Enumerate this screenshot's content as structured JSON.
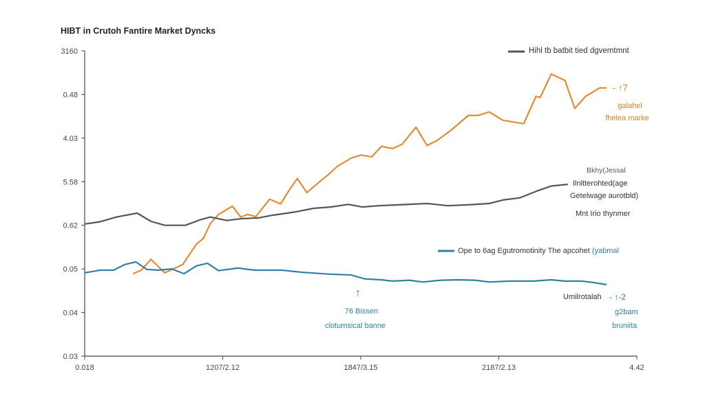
{
  "chart_data": {
    "type": "line",
    "title": "HIBT in Crutoh Fantire Market Dyncks",
    "xlabel": "",
    "ylabel": "",
    "xlim": [
      0,
      4
    ],
    "ylim": [
      0,
      7
    ],
    "grid": false,
    "x_ticks": [
      {
        "value": 0,
        "label": "0.018"
      },
      {
        "value": 1,
        "label": "1207/2.12"
      },
      {
        "value": 2,
        "label": "1847/3.15"
      },
      {
        "value": 3,
        "label": "2187/2.13"
      },
      {
        "value": 4,
        "label": "4.42"
      }
    ],
    "y_ticks": [
      {
        "value": 0,
        "label": "0.03"
      },
      {
        "value": 1,
        "label": "0.04"
      },
      {
        "value": 2,
        "label": "0.05"
      },
      {
        "value": 3,
        "label": "0.62"
      },
      {
        "value": 4,
        "label": "5.58"
      },
      {
        "value": 5,
        "label": "4.03"
      },
      {
        "value": 6,
        "label": "0.48"
      },
      {
        "value": 7,
        "label": "3160"
      }
    ],
    "series": [
      {
        "name": "orange",
        "color": "#e38a32",
        "x": [
          0.35,
          0.41,
          0.48,
          0.58,
          0.71,
          0.81,
          0.86,
          0.91,
          0.97,
          1.07,
          1.13,
          1.18,
          1.24,
          1.34,
          1.42,
          1.48,
          1.54,
          1.61,
          1.68,
          1.76,
          1.83,
          1.93,
          2.0,
          2.08,
          2.15,
          2.23,
          2.3,
          2.4,
          2.48,
          2.55,
          2.65,
          2.78,
          2.85,
          2.93,
          3.03,
          3.18,
          3.27,
          3.3,
          3.38,
          3.48,
          3.55,
          3.63,
          3.73,
          3.78
        ],
        "y": [
          1.89,
          1.97,
          2.22,
          1.91,
          2.1,
          2.57,
          2.7,
          3.04,
          3.25,
          3.44,
          3.19,
          3.25,
          3.2,
          3.6,
          3.49,
          3.8,
          4.07,
          3.75,
          3.94,
          4.15,
          4.35,
          4.54,
          4.61,
          4.57,
          4.81,
          4.76,
          4.86,
          5.25,
          4.83,
          4.94,
          5.17,
          5.52,
          5.52,
          5.6,
          5.41,
          5.33,
          5.96,
          5.93,
          6.47,
          6.32,
          5.68,
          5.96,
          6.15,
          6.15
        ]
      },
      {
        "name": "Hihl tb batbit tied dgvemtmnt",
        "color": "#555555",
        "x": [
          0,
          0.11,
          0.23,
          0.38,
          0.48,
          0.58,
          0.73,
          0.83,
          0.91,
          1.03,
          1.13,
          1.26,
          1.36,
          1.53,
          1.66,
          1.78,
          1.91,
          2.01,
          2.13,
          2.28,
          2.48,
          2.63,
          2.78,
          2.93,
          3.03,
          3.15,
          3.28,
          3.38,
          3.5
        ],
        "y": [
          3.03,
          3.08,
          3.19,
          3.28,
          3.09,
          3.0,
          3.0,
          3.12,
          3.19,
          3.11,
          3.15,
          3.17,
          3.23,
          3.31,
          3.39,
          3.42,
          3.48,
          3.42,
          3.45,
          3.47,
          3.5,
          3.45,
          3.47,
          3.5,
          3.58,
          3.63,
          3.79,
          3.9,
          3.94
        ]
      },
      {
        "name": "Ope to 6ag Egutromotinity The apcohet",
        "color": "#2f7fa6",
        "x": [
          0,
          0.11,
          0.21,
          0.29,
          0.37,
          0.45,
          0.53,
          0.63,
          0.72,
          0.81,
          0.89,
          0.97,
          1.11,
          1.23,
          1.43,
          1.58,
          1.78,
          1.93,
          2.03,
          2.15,
          2.23,
          2.35,
          2.45,
          2.58,
          2.7,
          2.83,
          2.93,
          3.08,
          3.25,
          3.38,
          3.48,
          3.6,
          3.68,
          3.78
        ],
        "y": [
          1.91,
          1.97,
          1.97,
          2.1,
          2.16,
          1.99,
          1.97,
          2.0,
          1.89,
          2.07,
          2.13,
          1.96,
          2.02,
          1.97,
          1.97,
          1.92,
          1.88,
          1.86,
          1.77,
          1.75,
          1.72,
          1.74,
          1.7,
          1.74,
          1.75,
          1.74,
          1.7,
          1.72,
          1.72,
          1.75,
          1.72,
          1.72,
          1.69,
          1.64
        ]
      }
    ],
    "legend": [
      {
        "label": "Hihl tb batbit tied dgvemtmnt",
        "color": "#555555",
        "placement": "top-right"
      },
      {
        "label": "Ope to 6ag Egutromotinity The apcohet",
        "suffix": "(yabmal",
        "color": "#2f7fa6",
        "placement": "right"
      }
    ],
    "annotations": {
      "orange_end": {
        "marker": "- ↑7",
        "line1": "galahel",
        "line2": "fhelea marke"
      },
      "gray_end": {
        "line1": "Bkhy(Jessal",
        "line2": "Ilnltterohted(age",
        "line3": "Getelwage aurotbld)",
        "line4": "Mnt Irio thynmer"
      },
      "blue_mid": {
        "arrow": "↑",
        "line1": "76 Bissen",
        "line2": "clotumsical banne"
      },
      "blue_end": {
        "label": "Umilrotalah",
        "marker": "- ↑-2",
        "line1": "g2bam",
        "line2": "bruniita"
      }
    }
  }
}
